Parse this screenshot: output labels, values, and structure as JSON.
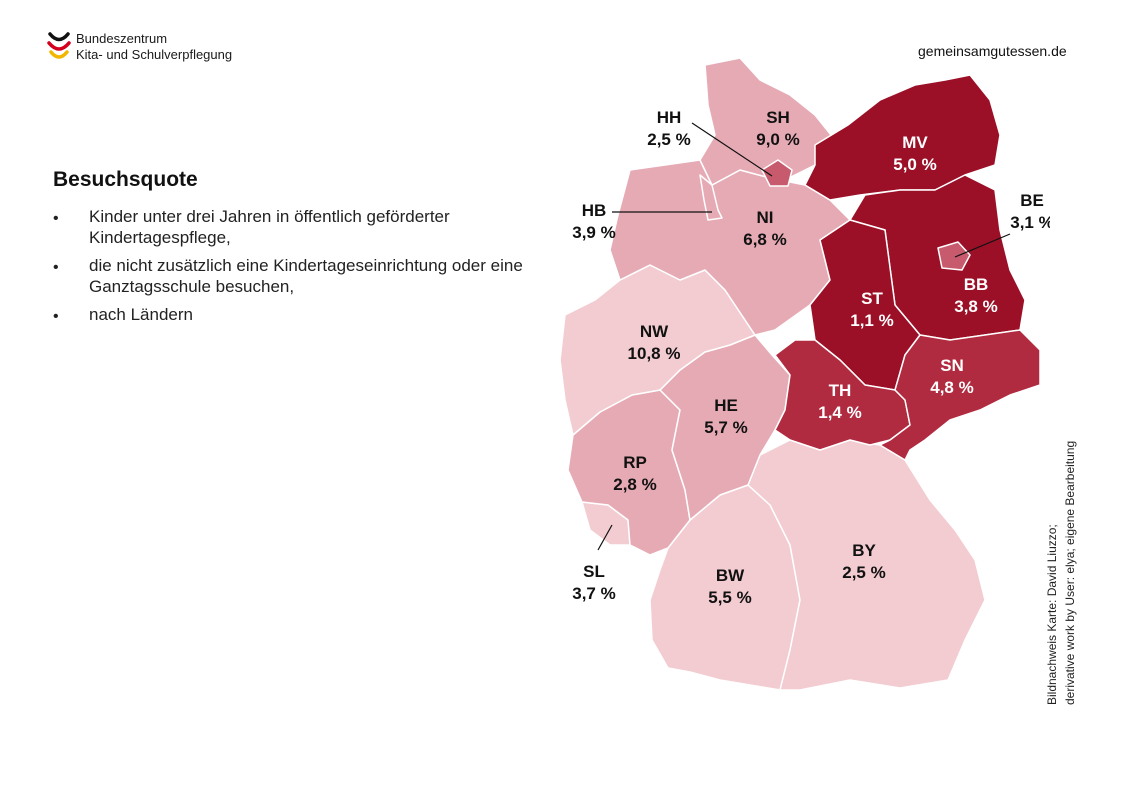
{
  "header": {
    "logo_line1": "Bundeszentrum",
    "logo_line2": "Kita- und Schulverpflegung",
    "website": "gemeinsamgutessen.de"
  },
  "content": {
    "heading": "Besuchsquote",
    "bullets": [
      "Kinder unter drei Jahren in öffentlich geförderter Kindertagespflege,",
      "die nicht zusätzlich eine Kindertageseinrichtung oder eine Ganztagsschule besuchen,",
      "nach Ländern"
    ]
  },
  "credit": {
    "line1": "Bildnachweis Karte: David Liuzzo;",
    "line2": "derivative work by User: elya; eigene Bearbeitung"
  },
  "colors": {
    "very_light": "#f2ccd1",
    "light": "#e6aab4",
    "medium": "#b02a40",
    "dark": "#9c1027",
    "city": "#c75a6c",
    "border": "#ffffff"
  },
  "states": [
    {
      "code": "SH",
      "value": "9,0 %",
      "shade": "light"
    },
    {
      "code": "HH",
      "value": "2,5 %",
      "shade": "city"
    },
    {
      "code": "HB",
      "value": "3,9 %",
      "shade": "light"
    },
    {
      "code": "NI",
      "value": "6,8 %",
      "shade": "light"
    },
    {
      "code": "MV",
      "value": "5,0 %",
      "shade": "dark"
    },
    {
      "code": "BE",
      "value": "3,1 %",
      "shade": "city"
    },
    {
      "code": "BB",
      "value": "3,8 %",
      "shade": "dark"
    },
    {
      "code": "ST",
      "value": "1,1 %",
      "shade": "dark"
    },
    {
      "code": "NW",
      "value": "10,8 %",
      "shade": "very_light"
    },
    {
      "code": "HE",
      "value": "5,7 %",
      "shade": "light"
    },
    {
      "code": "TH",
      "value": "1,4 %",
      "shade": "medium"
    },
    {
      "code": "SN",
      "value": "4,8 %",
      "shade": "medium"
    },
    {
      "code": "RP",
      "value": "2,8 %",
      "shade": "light"
    },
    {
      "code": "SL",
      "value": "3,7 %",
      "shade": "very_light"
    },
    {
      "code": "BY",
      "value": "2,5 %",
      "shade": "very_light"
    },
    {
      "code": "BW",
      "value": "5,5 %",
      "shade": "very_light"
    }
  ]
}
